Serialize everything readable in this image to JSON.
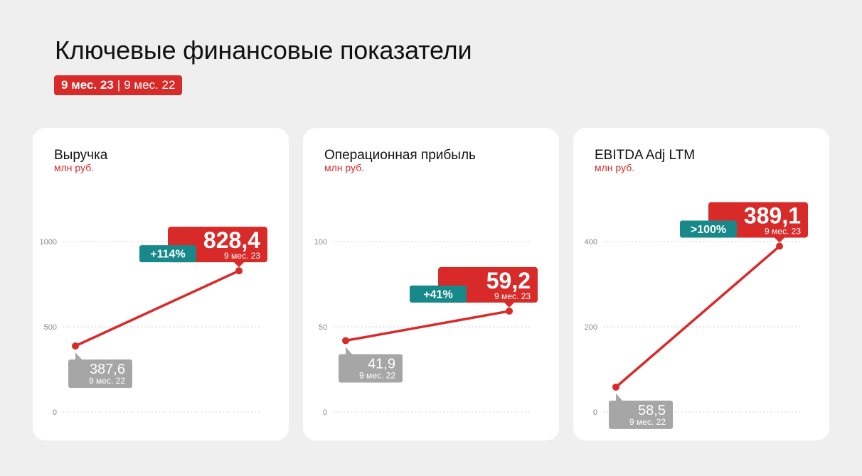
{
  "header": {
    "title": "Ключевые финансовые показатели",
    "period_current": "9 мес. 23",
    "period_separator": "|",
    "period_previous": "9 мес. 22"
  },
  "colors": {
    "accent": "#d92a2a",
    "previous": "#a6a6a6",
    "change": "#17898a",
    "background": "#efefef",
    "card": "#ffffff"
  },
  "chart_data": [
    {
      "type": "line",
      "title": "Выручка",
      "subtitle": "млн руб.",
      "x": [
        "9 мес. 22",
        "9 мес. 23"
      ],
      "series": [
        {
          "values": [
            387.6,
            828.4
          ]
        }
      ],
      "value_labels": [
        "387,6",
        "828,4"
      ],
      "change_label": "+114%",
      "yticks": [
        0,
        500,
        1000
      ],
      "ytick_labels": [
        "0",
        "500",
        "1000"
      ],
      "ylim": [
        0,
        1000
      ],
      "grid": true,
      "legend": "none"
    },
    {
      "type": "line",
      "title": "Операционная прибыль",
      "subtitle": "млн руб.",
      "x": [
        "9 мес. 22",
        "9 мес. 23"
      ],
      "series": [
        {
          "values": [
            41.9,
            59.2
          ]
        }
      ],
      "value_labels": [
        "41,9",
        "59,2"
      ],
      "change_label": "+41%",
      "yticks": [
        0,
        50,
        100
      ],
      "ytick_labels": [
        "0",
        "50",
        "100"
      ],
      "ylim": [
        0,
        100
      ],
      "grid": true,
      "legend": "none"
    },
    {
      "type": "line",
      "title": "EBITDA Adj LTM",
      "subtitle": "млн руб.",
      "x": [
        "9 мес. 22",
        "9 мес. 23"
      ],
      "series": [
        {
          "values": [
            58.5,
            389.1
          ]
        }
      ],
      "value_labels": [
        "58,5",
        "389,1"
      ],
      "change_label": ">100%",
      "yticks": [
        0,
        200,
        400
      ],
      "ytick_labels": [
        "0",
        "200",
        "400"
      ],
      "ylim": [
        0,
        400
      ],
      "grid": true,
      "legend": "none"
    }
  ]
}
